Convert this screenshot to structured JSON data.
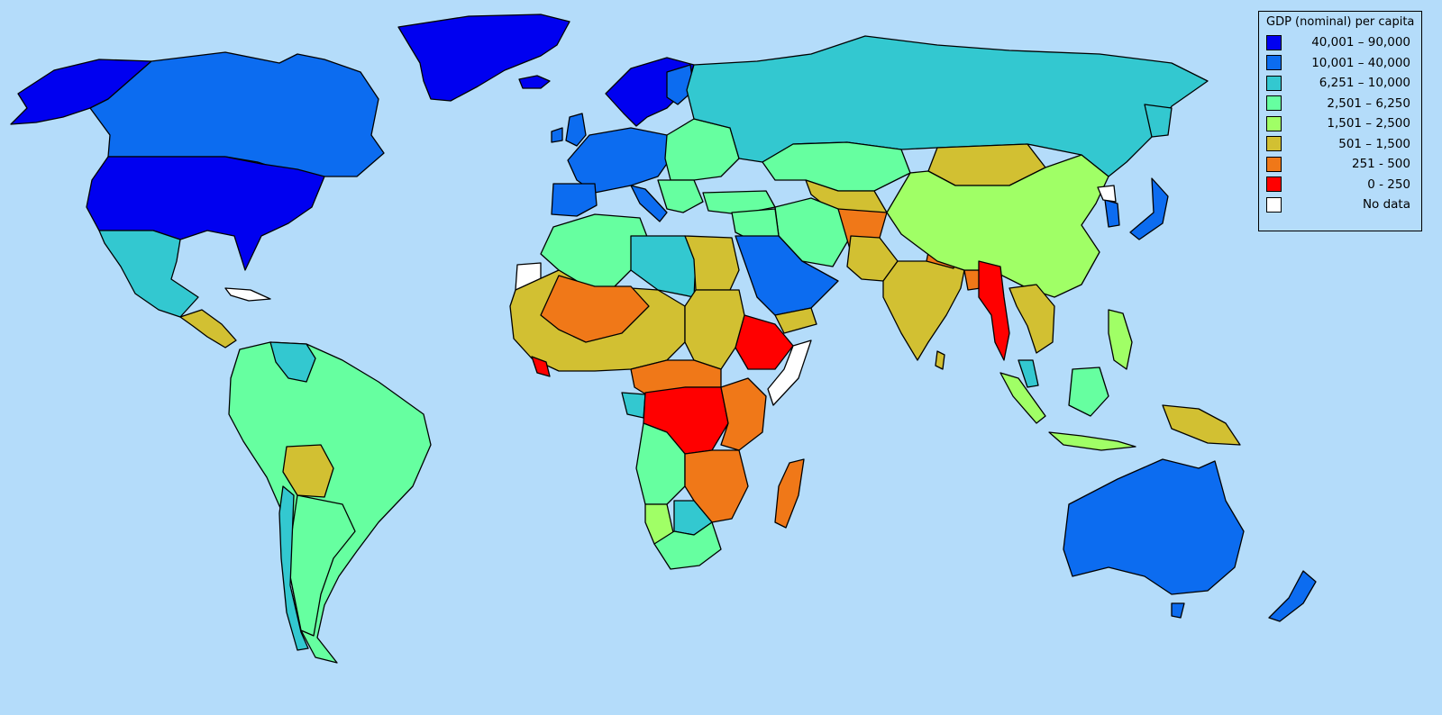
{
  "legend": {
    "title": "GDP (nominal) per capita",
    "items": [
      {
        "label": "40,001 – 90,000",
        "color": "#0000f0"
      },
      {
        "label": "10,001 – 40,000",
        "color": "#0c6cf0"
      },
      {
        "label": "6,251 – 10,000",
        "color": "#33c8d0"
      },
      {
        "label": "2,501 – 6,250",
        "color": "#66ffa0"
      },
      {
        "label": "1,501 – 2,500",
        "color": "#a0ff66"
      },
      {
        "label": "501 – 1,500",
        "color": "#d2c032"
      },
      {
        "label": "251 - 500",
        "color": "#f07818"
      },
      {
        "label": "0 - 250",
        "color": "#ff0000"
      },
      {
        "label": "No data",
        "color": "#ffffff"
      }
    ]
  },
  "map": {
    "ocean_color": "#b4dcfa",
    "border_color": "#000000"
  }
}
